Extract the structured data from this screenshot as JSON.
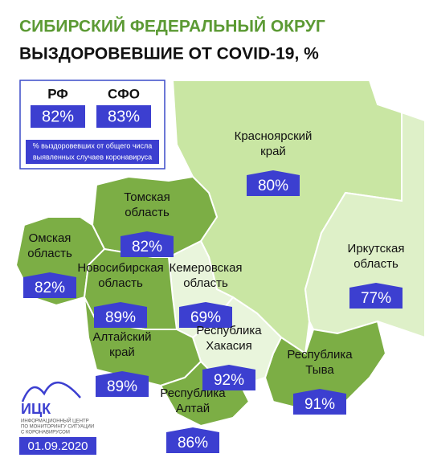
{
  "header": {
    "title": "СИБИРСКИЙ ФЕДЕРАЛЬНЫЙ ОКРУГ",
    "subtitle": "ВЫЗДОРОВЕВШИЕ ОТ COVID-19, %"
  },
  "summary": {
    "items": [
      {
        "label": "РФ",
        "value": "82%"
      },
      {
        "label": "СФО",
        "value": "83%"
      }
    ],
    "note_lines": [
      "% выздоровевших от общего числа",
      "выявленных случаев коронавируса"
    ]
  },
  "regions": [
    {
      "name_lines": [
        "Красноярский",
        "край"
      ],
      "value": "80%"
    },
    {
      "name_lines": [
        "Томская",
        "область"
      ],
      "value": "82%"
    },
    {
      "name_lines": [
        "Омская",
        "область"
      ],
      "value": "82%"
    },
    {
      "name_lines": [
        "Новосибирская",
        "область"
      ],
      "value": "89%"
    },
    {
      "name_lines": [
        "Кемеровская",
        "область"
      ],
      "value": "69%"
    },
    {
      "name_lines": [
        "Иркутская",
        "область"
      ],
      "value": "77%"
    },
    {
      "name_lines": [
        "Алтайский",
        "край"
      ],
      "value": "89%"
    },
    {
      "name_lines": [
        "Республика",
        "Хакасия"
      ],
      "value": "92%"
    },
    {
      "name_lines": [
        "Республика",
        "Тыва"
      ],
      "value": "91%"
    },
    {
      "name_lines": [
        "Республика",
        "Алтай"
      ],
      "value": "86%"
    }
  ],
  "logo": {
    "name": "ИЦК",
    "lines": [
      "ИНФОРМАЦИОННЫЙ ЦЕНТР",
      "ПО МОНИТОРИНГУ СИТУАЦИИ",
      "С КОРОНАВИРУСОМ"
    ]
  },
  "date": "01.09.2020"
}
